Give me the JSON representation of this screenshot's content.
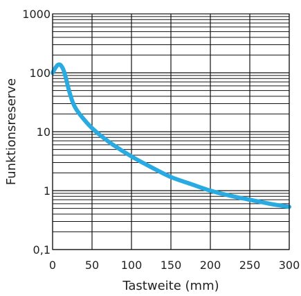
{
  "chart_data": {
    "type": "line",
    "xlabel": "Tastweite (mm)",
    "ylabel": "Funktionsreserve",
    "xlim": [
      0,
      300
    ],
    "ylim": [
      0.1,
      1000
    ],
    "yscale": "log",
    "x_ticks": [
      0,
      50,
      100,
      150,
      200,
      250,
      300
    ],
    "x_tick_labels": [
      "0",
      "50",
      "100",
      "150",
      "200",
      "250",
      "300"
    ],
    "y_ticks": [
      0.1,
      1,
      10,
      100,
      1000
    ],
    "y_tick_labels": [
      "0,1",
      "1",
      "10",
      "100",
      "1000"
    ],
    "grid": true,
    "series": [
      {
        "color": "#29abe2",
        "x": [
          0,
          3,
          6,
          8,
          10,
          12,
          14,
          17,
          20,
          25,
          30,
          40,
          50,
          60,
          75,
          100,
          125,
          150,
          175,
          200,
          225,
          250,
          275,
          300
        ],
        "y": [
          100,
          118,
          134,
          138,
          136,
          125,
          110,
          80,
          55,
          33,
          24,
          16,
          11.5,
          8.8,
          6.2,
          3.8,
          2.5,
          1.7,
          1.3,
          1.0,
          0.82,
          0.7,
          0.6,
          0.53
        ]
      }
    ]
  }
}
